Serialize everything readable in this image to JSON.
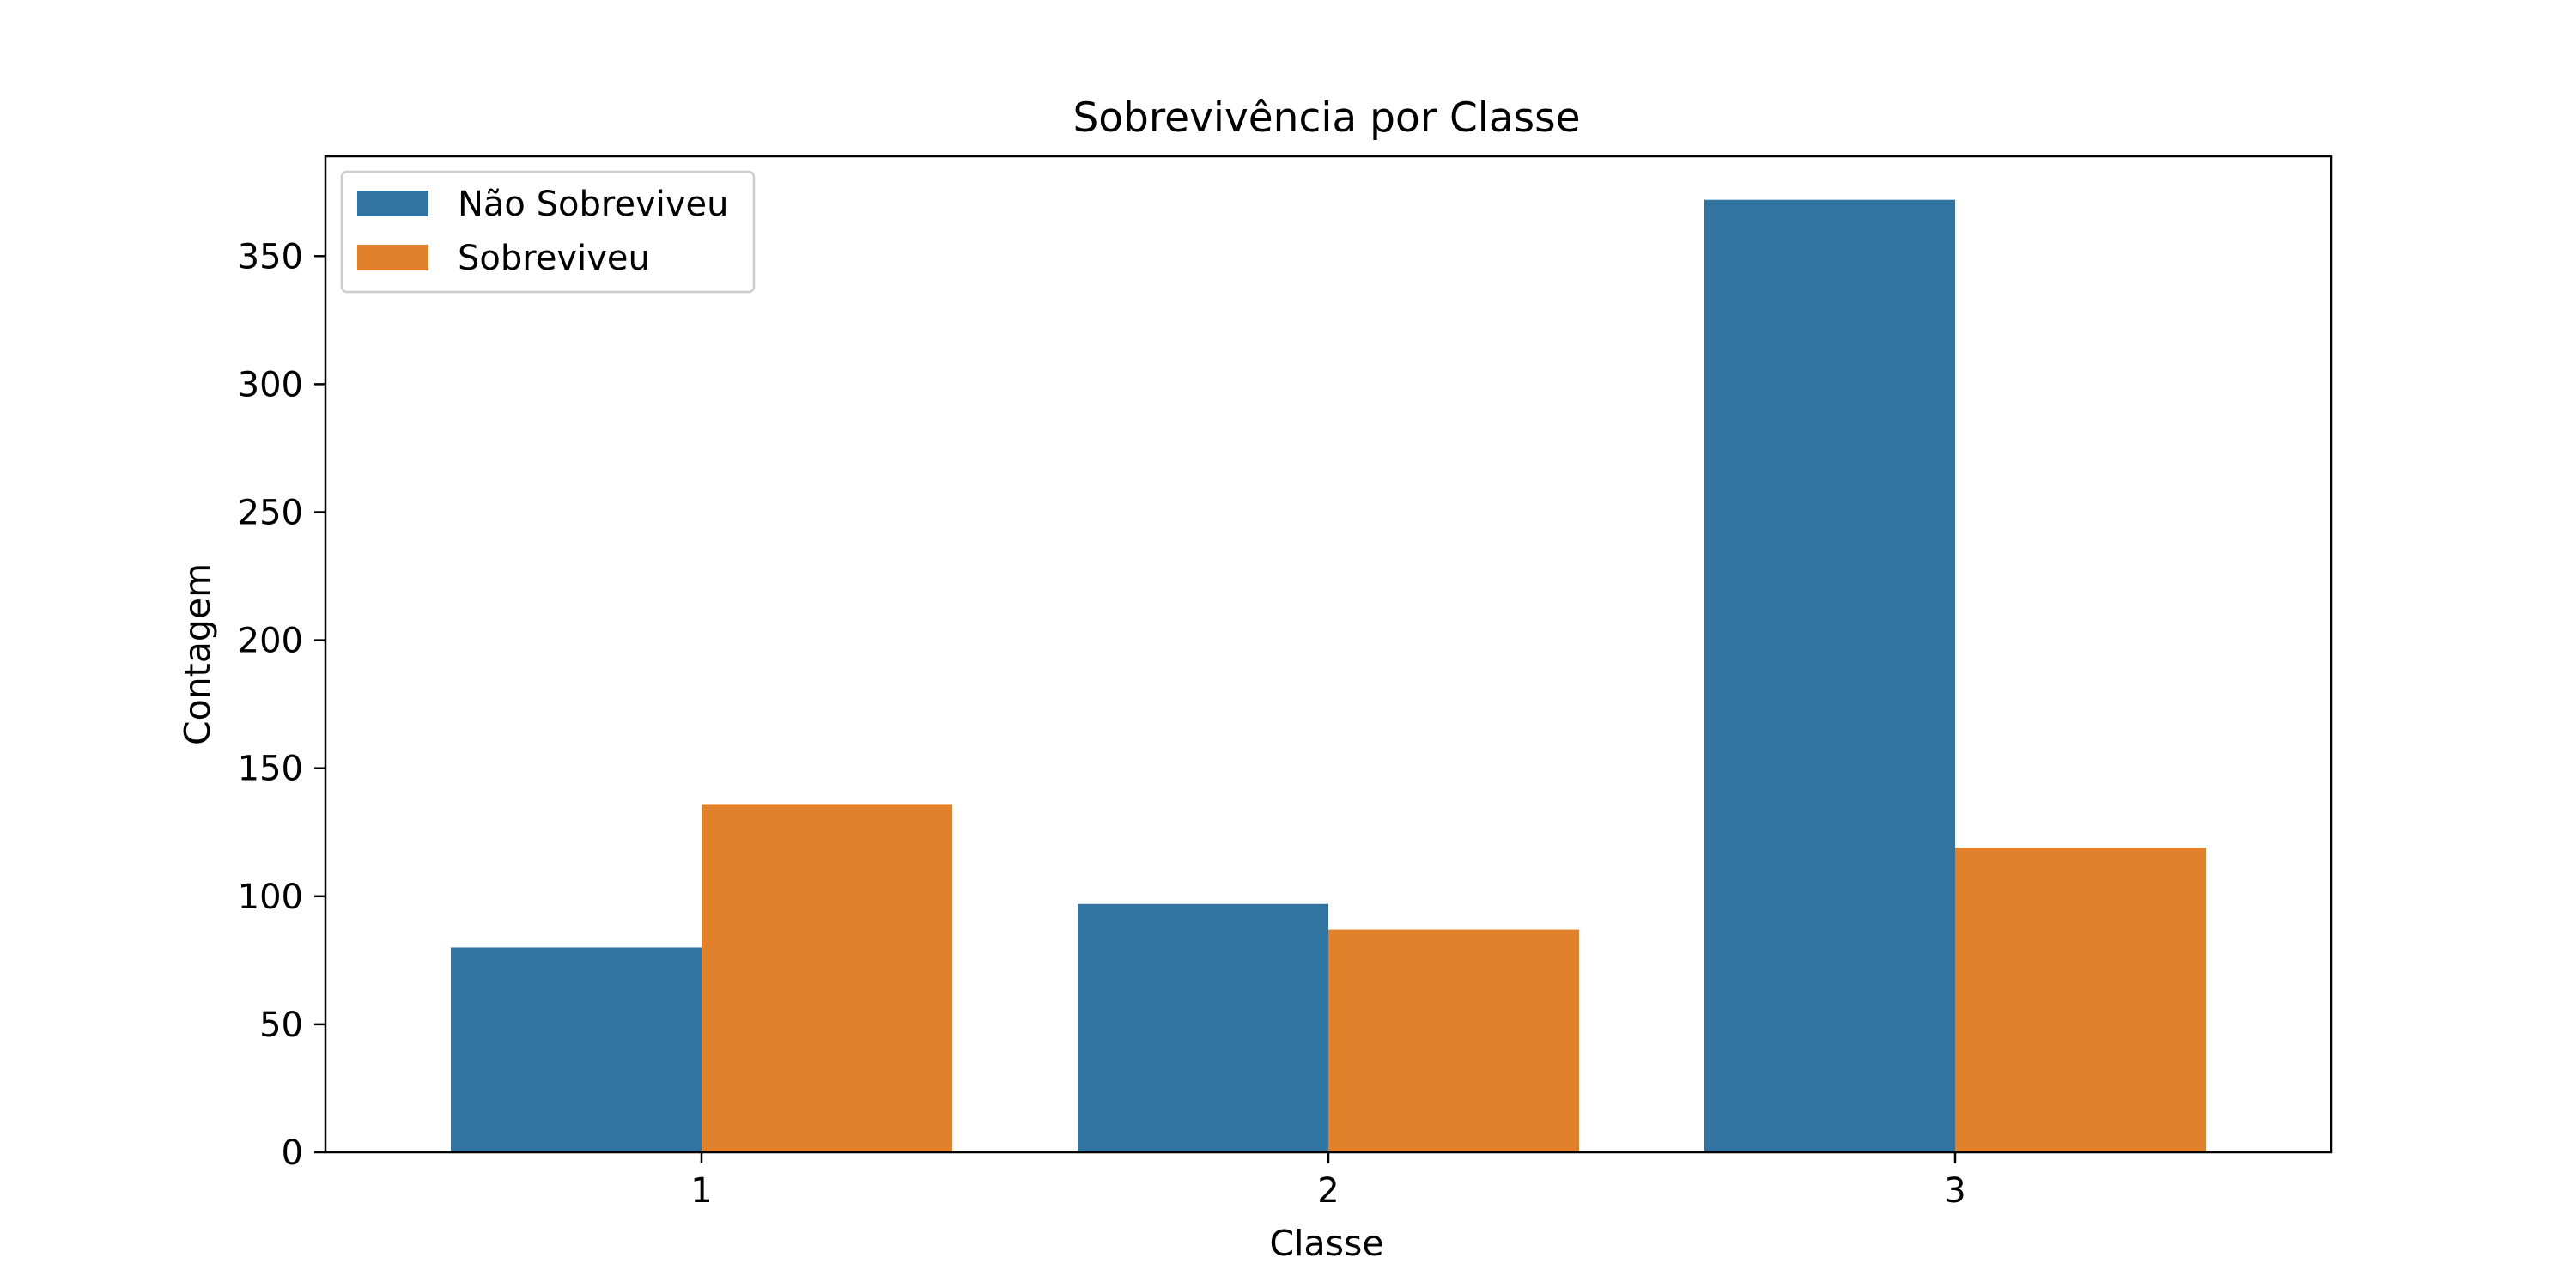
{
  "chart_data": {
    "type": "bar",
    "title": "Sobrevivência por Classe",
    "xlabel": "Classe",
    "ylabel": "Contagem",
    "categories": [
      "1",
      "2",
      "3"
    ],
    "series": [
      {
        "name": "Não Sobreviveu",
        "values": [
          80,
          97,
          372
        ],
        "color": "#3274a1"
      },
      {
        "name": "Sobreviveu",
        "values": [
          136,
          87,
          119
        ],
        "color": "#e1812c"
      }
    ],
    "ylim": [
      0,
      389
    ],
    "yticks": [
      0,
      50,
      100,
      150,
      200,
      250,
      300,
      350
    ],
    "grid": false,
    "legend_position": "top-left"
  }
}
